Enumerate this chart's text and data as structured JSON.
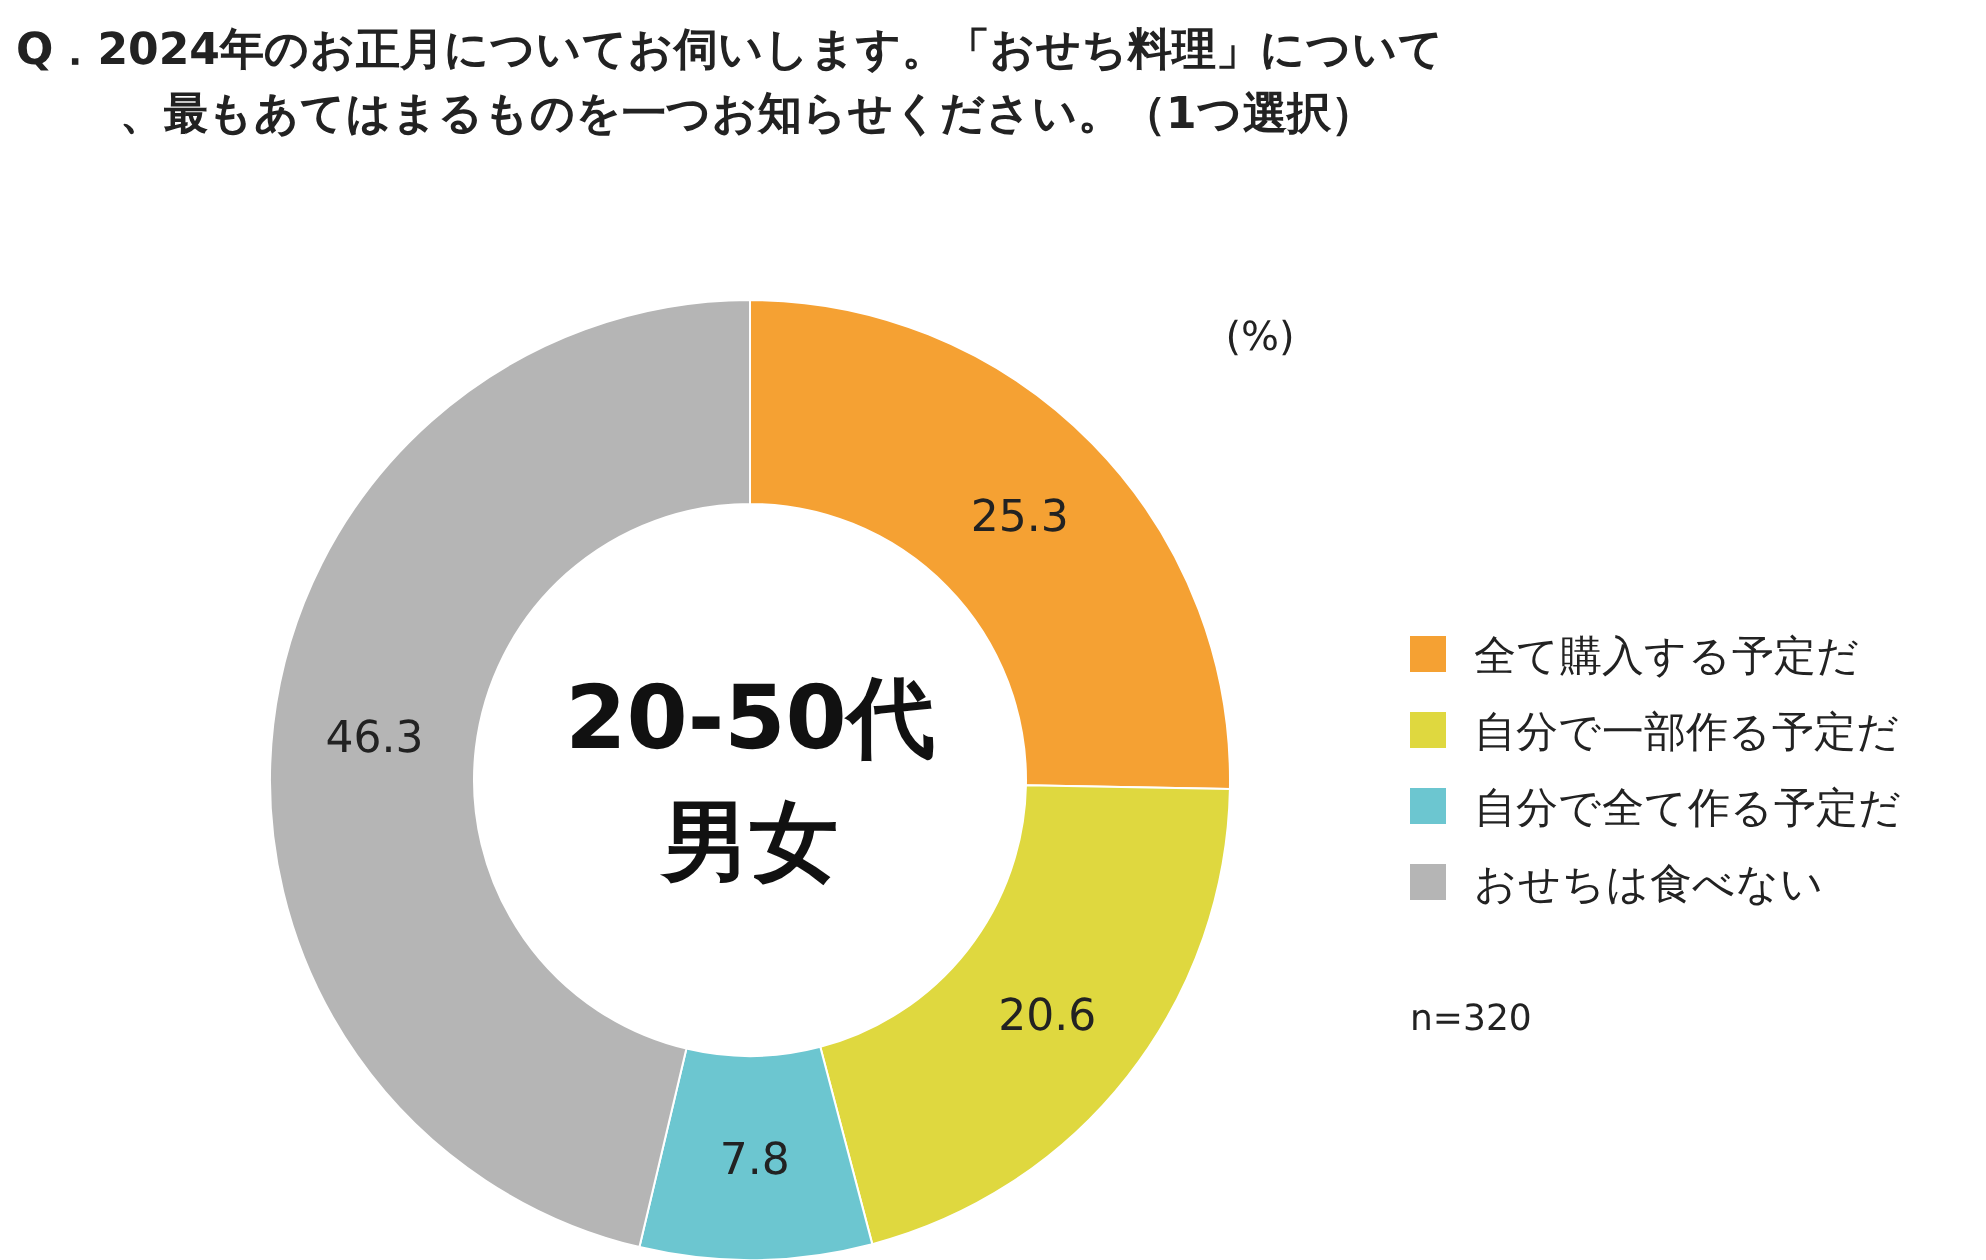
{
  "chart_data": {
    "type": "donut",
    "title": "Q．2024年のお正月についてお伺いします。「おせち料理」について、最もあてはまるものを一つお知らせください。（1つ選択）",
    "categories": [
      "全て購入する予定だ",
      "自分で一部作る予定だ",
      "自分で全て作る予定だ",
      "おせちは食べない"
    ],
    "values": [
      25.3,
      20.6,
      7.8,
      46.3
    ],
    "colors": [
      "#f5a133",
      "#dfd83f",
      "#6cc6d0",
      "#b5b5b5"
    ],
    "data_labels": true,
    "legend": "right",
    "annotations": [
      "20-50代男女",
      "(%)",
      "n=320"
    ]
  }
}
